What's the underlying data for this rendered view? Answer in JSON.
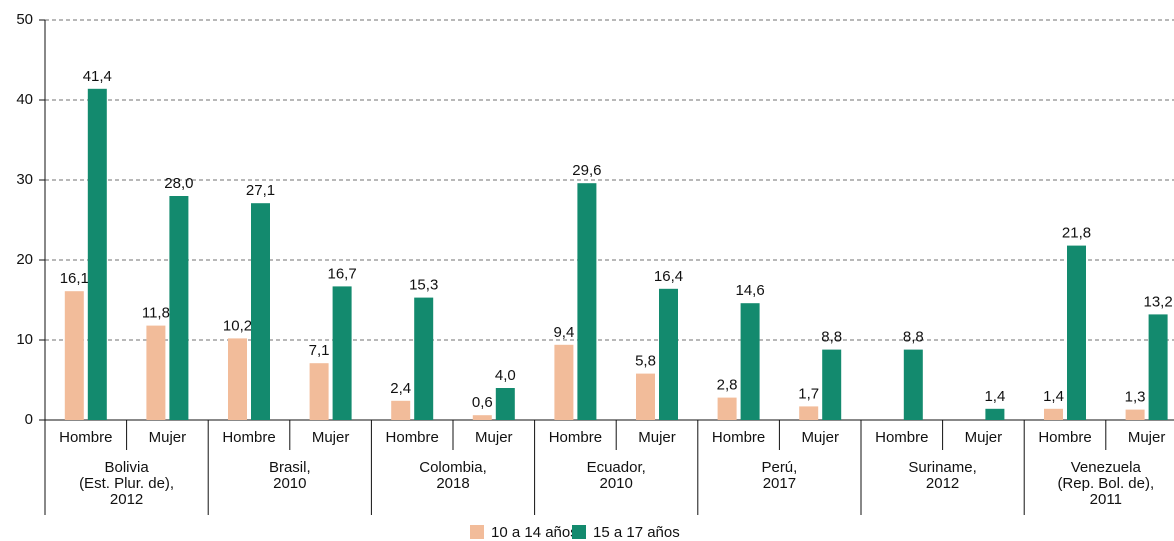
{
  "chart_data": {
    "type": "bar",
    "categories": [
      "Hombre",
      "Mujer",
      "Hombre",
      "Mujer",
      "Hombre",
      "Mujer",
      "Hombre",
      "Mujer",
      "Hombre",
      "Mujer",
      "Hombre",
      "Mujer",
      "Hombre",
      "Mujer"
    ],
    "groups": [
      "Bolivia\n(Est. Plur. de),\n2012",
      "Brasil,\n2010",
      "Colombia,\n2018",
      "Ecuador,\n2010",
      "Perú,\n2017",
      "Suriname,\n2012",
      "Venezuela\n(Rep. Bol. de),\n2011"
    ],
    "series": [
      {
        "name": "10 a 14 años",
        "color": "#f2bc9a",
        "values": [
          16.1,
          11.8,
          10.2,
          7.1,
          2.4,
          0.6,
          9.4,
          5.8,
          2.8,
          1.7,
          null,
          null,
          1.4,
          1.3
        ],
        "value_labels": [
          "16,1",
          "11,8",
          "10,2",
          "7,1",
          "2,4",
          "0,6",
          "9,4",
          "5,8",
          "2,8",
          "1,7",
          null,
          null,
          "1,4",
          "1,3"
        ]
      },
      {
        "name": "15 a 17 años",
        "color": "#138a6e",
        "values": [
          41.4,
          28.0,
          27.1,
          16.7,
          15.3,
          4.0,
          29.6,
          16.4,
          14.6,
          8.8,
          8.8,
          1.4,
          21.8,
          13.2
        ],
        "value_labels": [
          "41,4",
          "28,0",
          "27,1",
          "16,7",
          "15,3",
          "4,0",
          "29,6",
          "16,4",
          "14,6",
          "8,8",
          "8,8",
          "1,4",
          "21,8",
          "13,2"
        ]
      }
    ],
    "ylim": [
      0,
      50
    ],
    "yticks": [
      0,
      10,
      20,
      30,
      40,
      50
    ],
    "grid": true,
    "legend": "bottom"
  }
}
